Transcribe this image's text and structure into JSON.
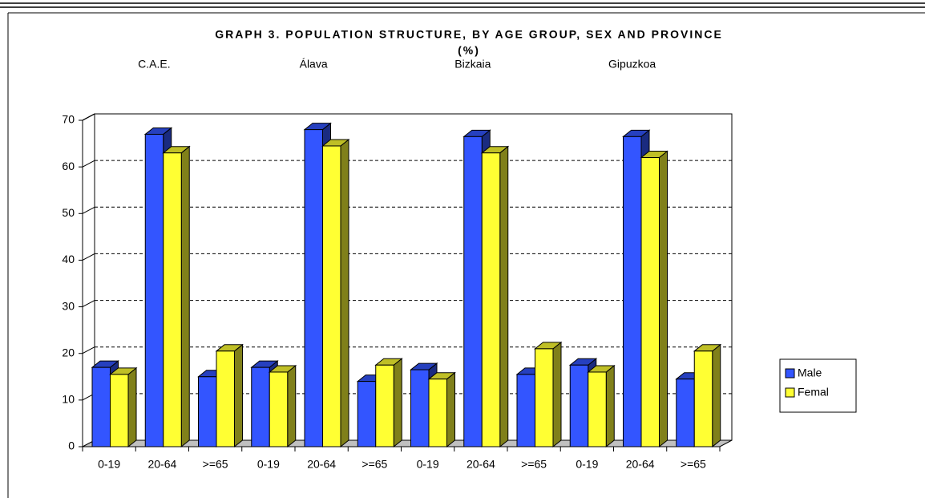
{
  "chart_data": {
    "type": "bar3d",
    "title": "GRAPH 3. POPULATION STRUCTURE, BY AGE GROUP, SEX AND PROVINCE",
    "subtitle": "(%)",
    "annotations": [
      "C.A.E.",
      "Álava",
      "Bizkaia",
      "Gipuzkoa"
    ],
    "categories": [
      "0-19",
      "20-64",
      ">=65",
      "0-19",
      "20-64",
      ">=65",
      "0-19",
      "20-64",
      ">=65",
      "0-19",
      "20-64",
      ">=65"
    ],
    "series": [
      {
        "name": "Male",
        "color": "#3355ff",
        "values": [
          17,
          67,
          15,
          17,
          68,
          14,
          16.5,
          66.5,
          15.5,
          17.5,
          66.5,
          14.5
        ]
      },
      {
        "name": "Femal",
        "color": "#ffff33",
        "values": [
          15.5,
          63,
          20.5,
          16,
          64.5,
          17.5,
          14.5,
          63,
          21,
          16,
          62,
          20.5
        ]
      }
    ],
    "ylim": [
      0,
      70
    ],
    "yticks": [
      0,
      10,
      20,
      30,
      40,
      50,
      60,
      70
    ],
    "grid": true,
    "legend": "right"
  }
}
